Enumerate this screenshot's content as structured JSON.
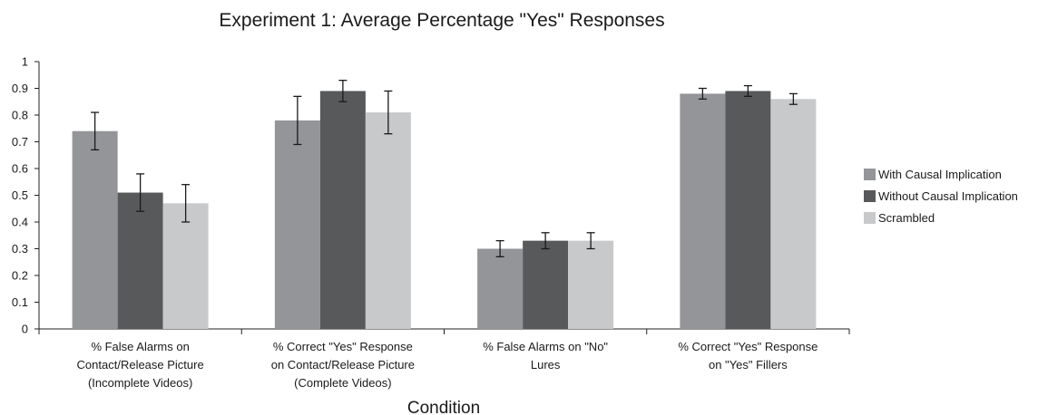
{
  "chart_data": {
    "type": "bar",
    "title": "Experiment 1: Average Percentage \"Yes\" Responses",
    "xlabel": "Condition",
    "ylabel": "",
    "ylim": [
      0,
      1
    ],
    "yticks": [
      "0",
      "0.1",
      "0.2",
      "0.3",
      "0.4",
      "0.5",
      "0.6",
      "0.7",
      "0.8",
      "0.9",
      "1"
    ],
    "grid": false,
    "legend_position": "right",
    "categories": [
      [
        "% False Alarms on",
        "Contact/Release Picture",
        "(Incomplete Videos)"
      ],
      [
        "% Correct \"Yes\" Response",
        "on Contact/Release Picture",
        "(Complete Videos)"
      ],
      [
        "% False Alarms on \"No\"",
        "Lures"
      ],
      [
        "% Correct \"Yes\" Response",
        "on \"Yes\" Fillers"
      ]
    ],
    "series": [
      {
        "name": "With Causal Implication",
        "color": "#949598",
        "values": [
          0.74,
          0.78,
          0.3,
          0.88
        ],
        "errors": [
          0.07,
          0.09,
          0.03,
          0.02
        ]
      },
      {
        "name": "Without Causal Implication",
        "color": "#58595b",
        "values": [
          0.51,
          0.89,
          0.33,
          0.89
        ],
        "errors": [
          0.07,
          0.04,
          0.03,
          0.02
        ]
      },
      {
        "name": "Scrambled",
        "color": "#c8c9cb",
        "values": [
          0.47,
          0.81,
          0.33,
          0.86
        ],
        "errors": [
          0.07,
          0.08,
          0.03,
          0.02
        ]
      }
    ]
  }
}
